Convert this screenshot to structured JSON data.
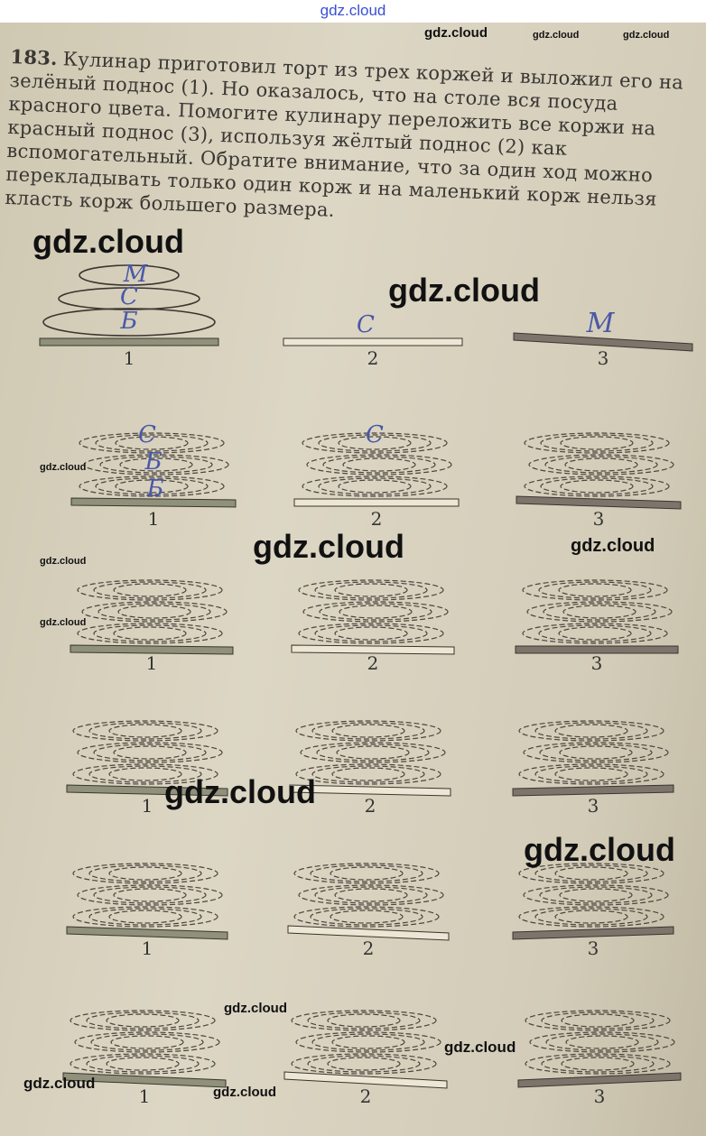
{
  "header": {
    "site": "gdz.cloud"
  },
  "task": {
    "number": "183.",
    "text": "Кулинар приготовил торт из трех коржей и выложил его на зелёный поднос (1). Но оказалось, что на столе вся посуда красного цвета. Помогите кулинару переложить все коржи на красный поднос (3), используя жёлтый поднос (2) как вспомогательный. Обратите внимание, что за один ход можно перекладывать только один корж и на маленький корж нельзя класть корж большего размера."
  },
  "tray_labels": [
    "1",
    "2",
    "3"
  ],
  "tray_colors": {
    "green": "#8f917a",
    "yellow": "#ece6d4",
    "red": "#7d756b"
  },
  "handwriting": {
    "row1": {
      "tray1": [
        "М",
        "С",
        "Б"
      ],
      "tray2": [
        "С"
      ],
      "tray3": [
        "М"
      ]
    },
    "row2": {
      "tray1": [
        "С",
        "Б",
        "Б"
      ],
      "tray2": [
        "С"
      ]
    }
  },
  "watermarks": [
    "gdz.cloud",
    "gdz.cloud",
    "gdz.cloud",
    "gdz.cloud",
    "gdz.cloud",
    "gdz.cloud",
    "gdz.cloud",
    "gdz.cloud",
    "gdz.cloud",
    "gdz.cloud",
    "gdz.cloud",
    "gdz.cloud",
    "gdz.cloud",
    "gdz.cloud",
    "gdz.cloud",
    "gdz.cloud"
  ]
}
